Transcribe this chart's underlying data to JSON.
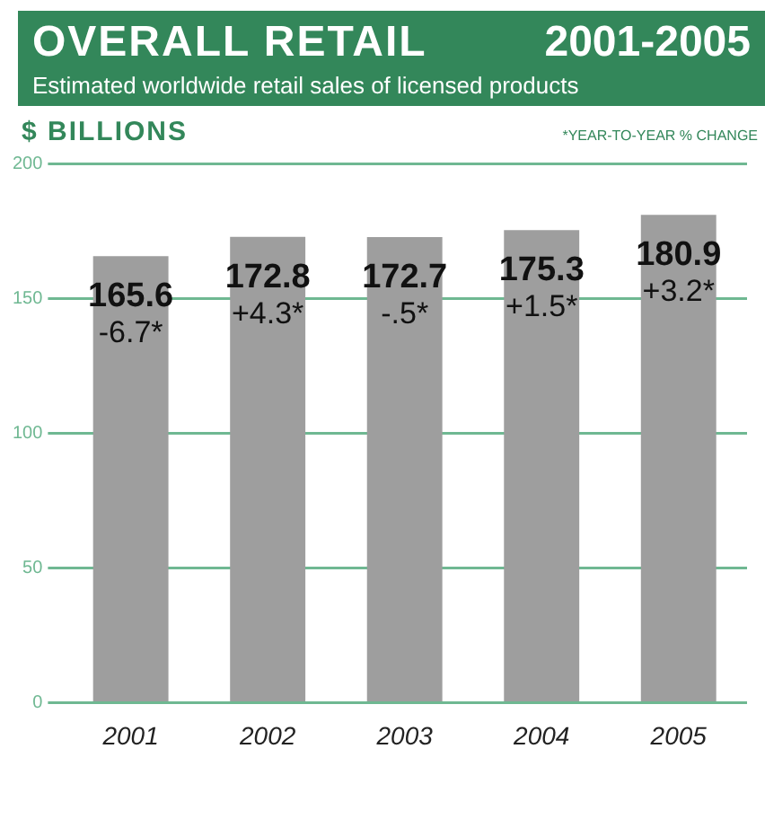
{
  "chart_data": {
    "type": "bar",
    "title": "OVERALL RETAIL",
    "subtitle": "Estimated worldwide retail sales of licensed products",
    "ylabel": "$ BILLIONS",
    "annotations": [
      "2001-2005",
      "*YEAR-TO-YEAR % CHANGE",
      {
        "text": "-6.7*",
        "x": "2001",
        "y": 165.6
      },
      {
        "text": "+4.3*",
        "x": "2002",
        "y": 172.8
      },
      {
        "text": "-.5*",
        "x": "2003",
        "y": 172.7
      },
      {
        "text": "+1.5*",
        "x": "2004",
        "y": 175.3
      },
      {
        "text": "+3.2*",
        "x": "2005",
        "y": 180.9
      }
    ],
    "categories": [
      "2001",
      "2002",
      "2003",
      "2004",
      "2005"
    ],
    "values": [
      165.6,
      172.8,
      172.7,
      175.3,
      180.9
    ],
    "color": "#9e9e9e",
    "ylim": [
      0,
      200
    ],
    "yticks": [
      0,
      50,
      100,
      150,
      200
    ],
    "grid": "y",
    "data_labels": true
  }
}
